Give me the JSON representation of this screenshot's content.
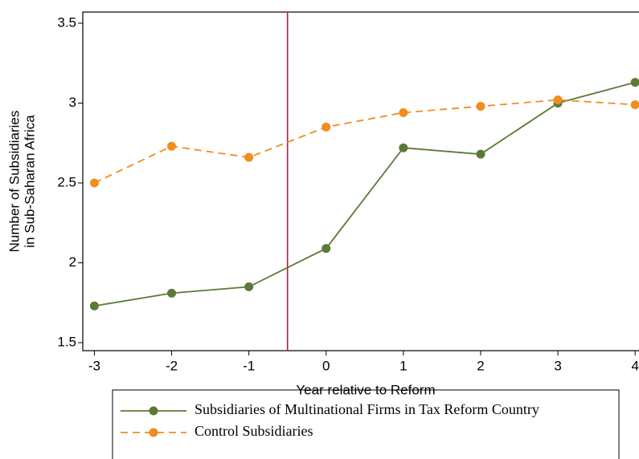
{
  "chart_data": {
    "type": "line",
    "x": [
      -3,
      -2,
      -1,
      0,
      1,
      2,
      3,
      4
    ],
    "xlim": [
      -3.15,
      4.05
    ],
    "xticks": [
      -3,
      -2,
      -1,
      0,
      1,
      2,
      3,
      4
    ],
    "ylim": [
      1.45,
      3.57
    ],
    "yticks": [
      1.5,
      2,
      2.5,
      3,
      3.5
    ],
    "x_label": "Year relative to Reform",
    "y_label": [
      "Number of Subsidiaries",
      "in Sub-Saharan Africa"
    ],
    "vline": -0.5,
    "vline_color": "#a3234f",
    "series": [
      {
        "name": "Subsidiaries of Multinational Firms in Tax Reform Country",
        "color": "#5a7a36",
        "dash": false,
        "values": [
          1.73,
          1.81,
          1.85,
          2.09,
          2.72,
          2.68,
          3.0,
          3.13
        ]
      },
      {
        "name": "Control Subsidiaries",
        "color": "#f28c1c",
        "dash": true,
        "values": [
          2.5,
          2.73,
          2.66,
          2.85,
          2.94,
          2.98,
          3.02,
          2.99
        ]
      }
    ]
  }
}
